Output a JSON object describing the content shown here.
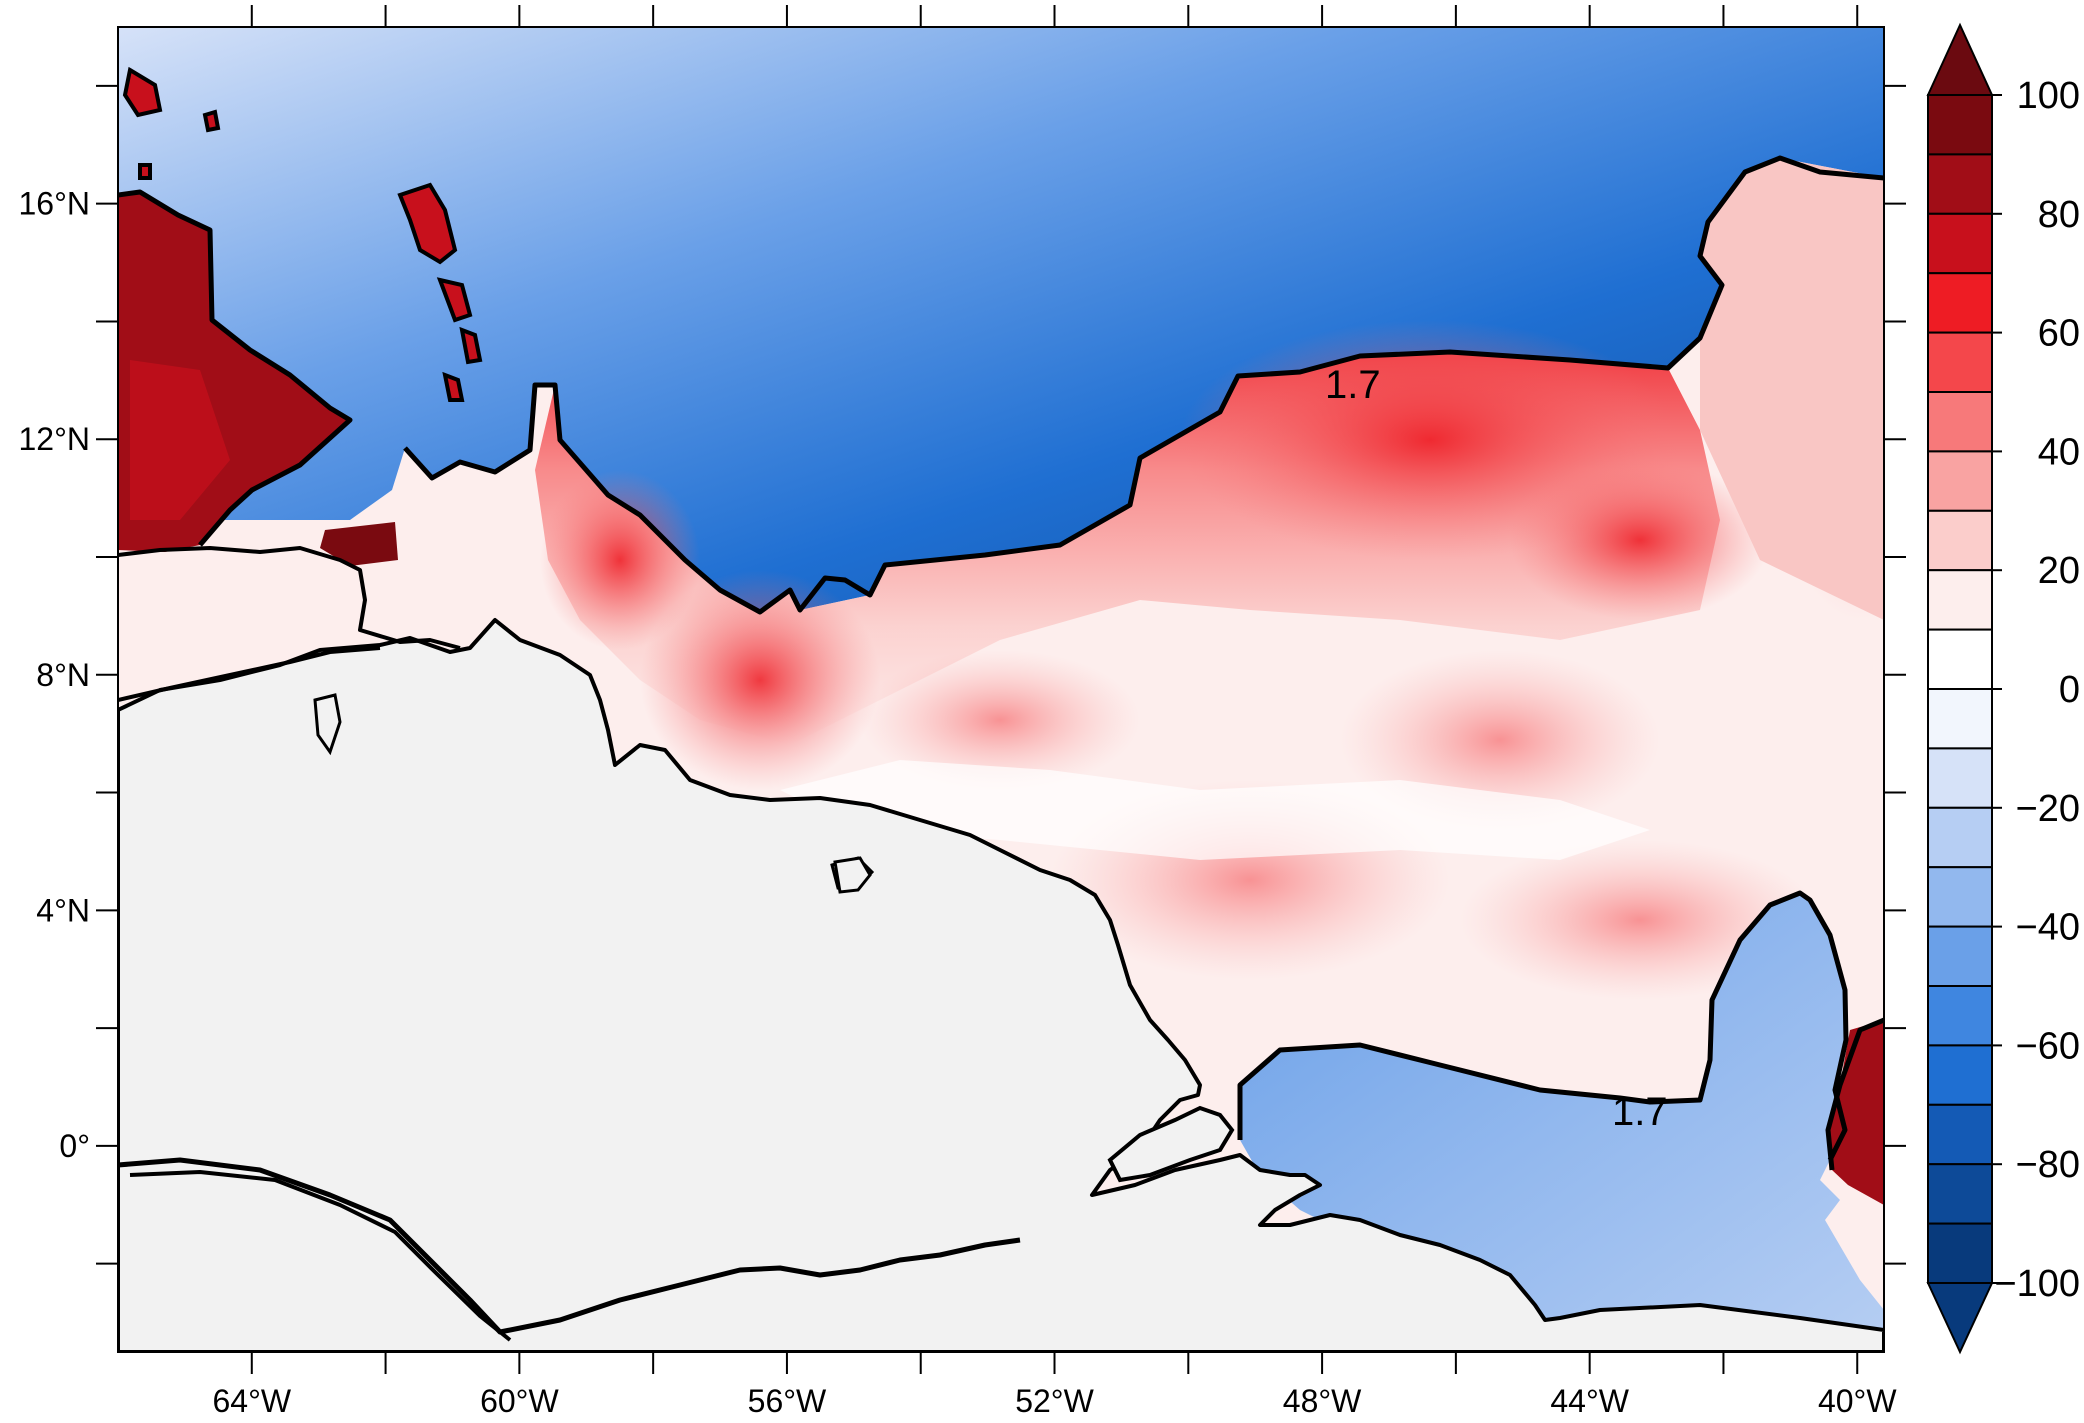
{
  "map": {
    "lon_range": [
      -66,
      -39.6
    ],
    "lat_range": [
      -3.5,
      19
    ],
    "land_color": "#f2f2f2",
    "coast_color": "#000000",
    "contour_value_label": "1.7",
    "lon_ticks": [
      {
        "value": -64,
        "label": "64°W"
      },
      {
        "value": -60,
        "label": "60°W"
      },
      {
        "value": -56,
        "label": "56°W"
      },
      {
        "value": -52,
        "label": "52°W"
      },
      {
        "value": -48,
        "label": "48°W"
      },
      {
        "value": -44,
        "label": "44°W"
      },
      {
        "value": -40,
        "label": "40°W"
      }
    ],
    "lon_minor_ticks": [
      -62,
      -58,
      -54,
      -50,
      -46,
      -42
    ],
    "lat_ticks": [
      {
        "value": 16,
        "label": "16°N"
      },
      {
        "value": 12,
        "label": "12°N"
      },
      {
        "value": 8,
        "label": "8°N"
      },
      {
        "value": 4,
        "label": "4°N"
      },
      {
        "value": 0,
        "label": "0°"
      }
    ],
    "lat_minor_ticks": [
      18,
      14,
      10,
      6,
      2,
      -2
    ]
  },
  "colorbar": {
    "range": [
      -100,
      100
    ],
    "step": 10,
    "labels": [
      "100",
      "80",
      "60",
      "40",
      "20",
      "0",
      "−20",
      "−40",
      "−60",
      "−80",
      "−100"
    ],
    "label_values": [
      100,
      80,
      60,
      40,
      20,
      0,
      -20,
      -40,
      -60,
      -80,
      -100
    ],
    "colors_top_to_bottom": [
      "#7a0a10",
      "#a10d17",
      "#c8101c",
      "#ee1c24",
      "#f4474b",
      "#f7797a",
      "#f9a3a2",
      "#fbcdcb",
      "#fdeeed",
      "#ffffff",
      "#f2f6fd",
      "#d6e2f8",
      "#b6cef3",
      "#92b8ee",
      "#6aa0e8",
      "#3f86e0",
      "#1f6fd2",
      "#145ab5",
      "#0d4a98",
      "#083a7c"
    ],
    "over_color": "#6b0a10",
    "under_color": "#083a7c"
  }
}
